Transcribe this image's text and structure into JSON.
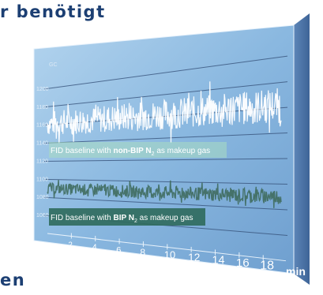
{
  "heading_top": "r benötigt",
  "heading_bottom": "en",
  "chart_data": {
    "type": "line",
    "ylabel": "GC",
    "xlabel": "min",
    "y_ticks": [
      1060,
      1080,
      1100,
      1120,
      1140,
      1160,
      1180,
      1200
    ],
    "y_range": [
      1040,
      1220
    ],
    "x_ticks": [
      2,
      4,
      6,
      8,
      10,
      12,
      14,
      16,
      18
    ],
    "x_range": [
      0,
      19.5
    ],
    "grid": true,
    "series": [
      {
        "name": "FID baseline with non-BIP N2 as makeup gas",
        "color": "#ffffff",
        "level": 1162,
        "amplitude": 14
      },
      {
        "name": "FID baseline with BIP N2 as makeup gas",
        "color": "#3f6b5e",
        "level": 1090,
        "amplitude": 6
      }
    ],
    "annotations": [
      {
        "prefix": "FID baseline with ",
        "bold": "non-BIP N",
        "sub": "2",
        "suffix": " as makeup gas"
      },
      {
        "prefix": "FID baseline with ",
        "bold": "BIP N",
        "sub": "2",
        "suffix": " as makeup gas"
      }
    ]
  }
}
